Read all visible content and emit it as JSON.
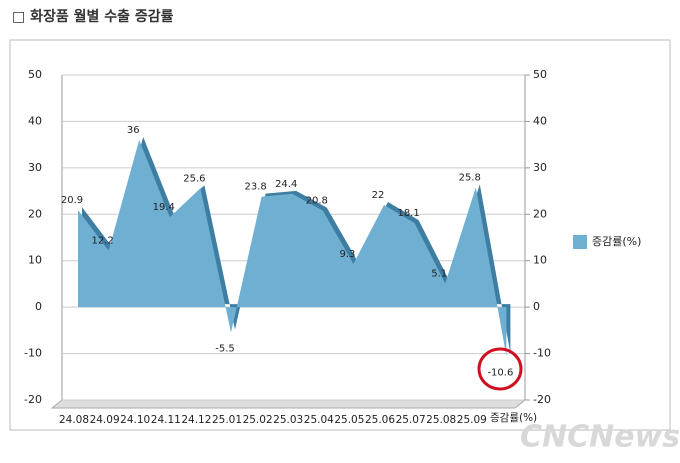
{
  "chart_data": {
    "type": "area",
    "title": "□ 화장품 월별 수출 증감률",
    "categories": [
      "24.08",
      "24.09",
      "24.10",
      "24.11",
      "24.12",
      "25.01",
      "25.02",
      "25.03",
      "25.04",
      "25.05",
      "25.06",
      "25.07",
      "25.08",
      "25.09",
      null
    ],
    "series": [
      {
        "name": "증감률(%)",
        "color": "#6fb0d2",
        "values": [
          20.9,
          12.2,
          36,
          19.4,
          25.6,
          -5.5,
          23.8,
          24.4,
          20.8,
          9.3,
          22,
          18.1,
          5.1,
          25.8,
          -10.6
        ]
      }
    ],
    "ylim": [
      -20,
      50
    ],
    "yticks": [
      -20,
      -10,
      0,
      10,
      20,
      30,
      40,
      50
    ],
    "y2lim": [
      -20,
      50
    ],
    "y2ticks": [
      -20,
      -10,
      0,
      10,
      20,
      30,
      40,
      50
    ],
    "grid": true,
    "legend": "right",
    "watermark": "CNCNews"
  }
}
